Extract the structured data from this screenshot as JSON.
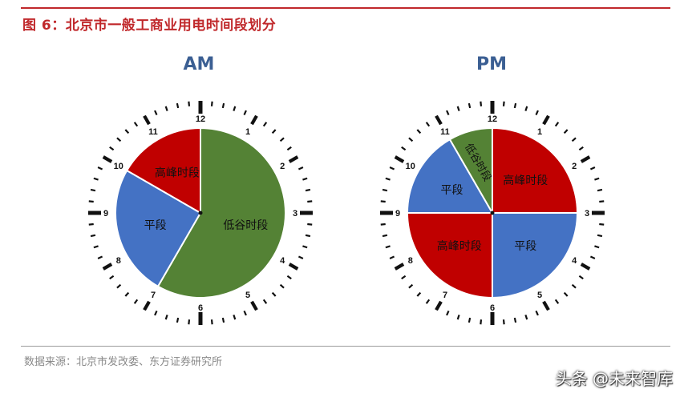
{
  "title": "图 6：北京市一般工商业用电时间段划分",
  "source": "数据来源：北京市发改委、东方证券研究所",
  "watermark": "头条 @未来智库",
  "colors": {
    "red": "#c00000",
    "blue": "#4472c4",
    "green": "#548235",
    "title": "#c0282b",
    "label": "#3b5f93"
  },
  "clocks": [
    {
      "label": "AM",
      "segments": [
        {
          "label": "低谷时段",
          "start_hour": 0,
          "end_hour": 7,
          "color": "#548235"
        },
        {
          "label": "平段",
          "start_hour": 7,
          "end_hour": 10,
          "color": "#4472c4"
        },
        {
          "label": "高峰时段",
          "start_hour": 10,
          "end_hour": 12,
          "color": "#c00000"
        }
      ]
    },
    {
      "label": "PM",
      "segments": [
        {
          "label": "高峰时段",
          "start_hour": 12,
          "end_hour": 15,
          "color": "#c00000"
        },
        {
          "label": "平段",
          "start_hour": 15,
          "end_hour": 18,
          "color": "#4472c4"
        },
        {
          "label": "高峰时段",
          "start_hour": 18,
          "end_hour": 21,
          "color": "#c00000"
        },
        {
          "label": "平段",
          "start_hour": 21,
          "end_hour": 23,
          "color": "#4472c4"
        },
        {
          "label": "低谷时段",
          "start_hour": 23,
          "end_hour": 24,
          "color": "#548235"
        }
      ]
    }
  ],
  "hour_numbers": [
    "12",
    "1",
    "2",
    "3",
    "4",
    "5",
    "6",
    "7",
    "8",
    "9",
    "10",
    "11"
  ]
}
